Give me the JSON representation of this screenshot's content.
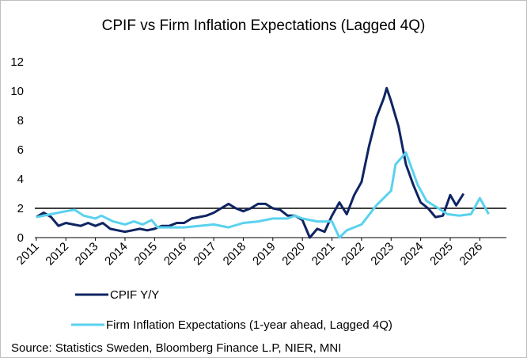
{
  "chart_data": {
    "type": "line",
    "title": "CPIF vs Firm Inflation Expectations (Lagged 4Q)",
    "source": "Source: Statistics Sweden, Bloomberg Finance L.P, NIER, MNI",
    "xlim": [
      2010.95,
      2026.9
    ],
    "xticks": [
      2011,
      2012,
      2013,
      2014,
      2015,
      2016,
      2017,
      2018,
      2019,
      2020,
      2021,
      2022,
      2023,
      2024,
      2025,
      2026
    ],
    "ylim": [
      0,
      12
    ],
    "yticks": [
      0,
      2,
      4,
      6,
      8,
      10,
      12
    ],
    "reference_line": 2,
    "series": [
      {
        "name": "CPIF Y/Y",
        "color": "#0f2462",
        "x": [
          2011.0,
          2011.25,
          2011.5,
          2011.75,
          2012.0,
          2012.25,
          2012.5,
          2012.75,
          2013.0,
          2013.25,
          2013.5,
          2013.75,
          2014.0,
          2014.25,
          2014.5,
          2014.75,
          2015.0,
          2015.25,
          2015.5,
          2015.75,
          2016.0,
          2016.25,
          2016.5,
          2016.75,
          2017.0,
          2017.25,
          2017.5,
          2017.75,
          2018.0,
          2018.25,
          2018.5,
          2018.75,
          2019.0,
          2019.25,
          2019.5,
          2019.75,
          2020.0,
          2020.25,
          2020.5,
          2020.75,
          2021.0,
          2021.25,
          2021.5,
          2021.75,
          2022.0,
          2022.25,
          2022.5,
          2022.75,
          2022.85,
          2023.0,
          2023.25,
          2023.5,
          2023.75,
          2024.0,
          2024.25,
          2024.5,
          2024.75,
          2025.0,
          2025.2,
          2025.45
        ],
        "values": [
          1.4,
          1.7,
          1.4,
          0.8,
          1.0,
          0.9,
          0.8,
          1.0,
          0.8,
          1.0,
          0.6,
          0.5,
          0.4,
          0.5,
          0.6,
          0.5,
          0.6,
          0.8,
          0.8,
          1.0,
          1.0,
          1.3,
          1.4,
          1.5,
          1.7,
          2.0,
          2.3,
          2.0,
          1.8,
          2.0,
          2.3,
          2.3,
          2.0,
          1.9,
          1.5,
          1.5,
          1.2,
          0.0,
          0.6,
          0.4,
          1.5,
          2.4,
          1.6,
          2.9,
          3.8,
          6.2,
          8.2,
          9.5,
          10.2,
          9.3,
          7.6,
          5.0,
          3.6,
          2.4,
          2.0,
          1.4,
          1.5,
          2.9,
          2.2,
          3.0
        ]
      },
      {
        "name": "Firm Inflation Expectations (1-year ahead, Lagged 4Q)",
        "color": "#5ad2ee",
        "x": [
          2011.0,
          2011.5,
          2012.0,
          2012.3,
          2012.6,
          2013.0,
          2013.2,
          2013.6,
          2014.0,
          2014.3,
          2014.6,
          2014.9,
          2015.1,
          2015.5,
          2016.0,
          2016.5,
          2017.0,
          2017.5,
          2018.0,
          2018.5,
          2019.0,
          2019.5,
          2019.75,
          2020.0,
          2020.5,
          2021.0,
          2021.25,
          2021.5,
          2022.0,
          2022.5,
          2023.0,
          2023.15,
          2023.5,
          2023.9,
          2024.2,
          2024.6,
          2024.9,
          2025.3,
          2025.7,
          2026.0,
          2026.3
        ],
        "values": [
          1.4,
          1.6,
          1.8,
          1.9,
          1.5,
          1.3,
          1.5,
          1.1,
          0.9,
          1.1,
          0.9,
          1.2,
          0.7,
          0.7,
          0.7,
          0.8,
          0.9,
          0.7,
          1.0,
          1.1,
          1.3,
          1.3,
          1.5,
          1.3,
          1.1,
          1.1,
          0.0,
          0.5,
          0.9,
          2.2,
          3.2,
          5.0,
          5.8,
          3.6,
          2.5,
          2.0,
          1.6,
          1.5,
          1.6,
          2.7,
          1.6
        ]
      }
    ]
  }
}
